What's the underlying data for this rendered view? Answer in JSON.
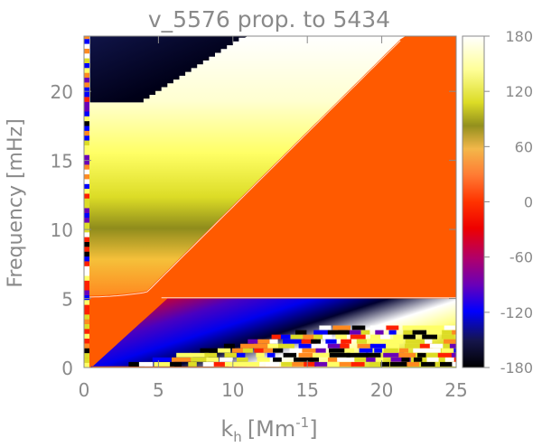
{
  "chart_data": {
    "type": "heatmap",
    "title": "v_5576 prop. to 5434",
    "xlabel": {
      "base": "k",
      "subscript": "h",
      "unit_open": "[Mm",
      "unit_exp": "-1",
      "unit_close": "]"
    },
    "ylabel": "Frequency [mHz]",
    "xlim": [
      0,
      25
    ],
    "ylim": [
      0,
      24
    ],
    "x_ticks": [
      0,
      5,
      10,
      15,
      20,
      25
    ],
    "x_tick_labels": [
      "0",
      "5",
      "10",
      "15",
      "20",
      "25"
    ],
    "y_ticks": [
      0,
      5,
      10,
      15,
      20
    ],
    "y_tick_labels": [
      "0",
      "5",
      "10",
      "15",
      "20"
    ],
    "colorbar": {
      "range": [
        -180,
        180
      ],
      "ticks": [
        180,
        120,
        60,
        0,
        -60,
        -120,
        -180
      ],
      "tick_labels": [
        "180",
        "120",
        "60",
        "0",
        "-60",
        "-120",
        "-180"
      ]
    },
    "regions": {
      "upper_branch": "yellow-white phase ~90 to 180 above ~5 mHz at low k",
      "high_frequency_corner": "dark blue-black ~-180 above ~19 mHz at small k",
      "propagating_region": "uniform orange phase ~20 right of the diagonal",
      "lower_band": "red-blue-black gradient just below 5 mHz",
      "bottom_stripes": "striped mixed phases below ~3 mHz"
    },
    "colors": {
      "uniform_phase": "#ff5a00",
      "axis": "#8a8a8a"
    }
  }
}
